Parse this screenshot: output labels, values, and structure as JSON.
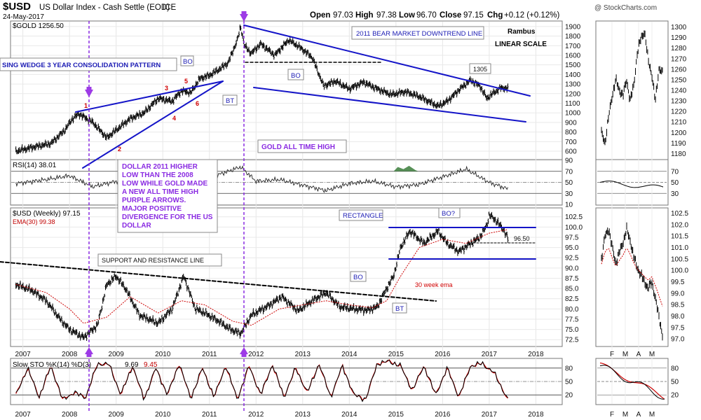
{
  "header": {
    "symbol": "$USD",
    "title": "US Dollar Index - Cash Settle (EOD)",
    "exchange": "ICE",
    "date": "24-May-2017",
    "open_label": "Open",
    "open": "97.03",
    "high_label": "High",
    "high": "97.38",
    "low_label": "Low",
    "low": "96.70",
    "close_label": "Close",
    "close": "97.15",
    "chg_label": "Chg",
    "chg": "+0.12 (+0.12%)",
    "watermark": "@ StockCharts.com"
  },
  "author": {
    "name": "Rambus",
    "scale": "LINEAR SCALE"
  },
  "panels": {
    "gold": {
      "legend": "$GOLD 1256.50",
      "last": 1256.5
    },
    "rsi": {
      "legend": "RSI(14) 38.01",
      "last": 38.01
    },
    "usd": {
      "legend": "$USD (Weekly) 97.15",
      "ema_legend": "EMA(30) 99.38",
      "last": 97.15
    },
    "sto": {
      "legend_a": "Slow STO %K(14) %D(3)",
      "legend_k": "9.69",
      "legend_d": "9.45"
    }
  },
  "annotations": {
    "wedge": "SING WEDGE 3 YEAR CONSOLIDATION PATTERN",
    "bear": "2011 BEAR MARKET DOWNTREND LINE",
    "gold_ath": "GOLD ALL TIME HIGH",
    "divergence": [
      "DOLLAR 2011 HIGHER",
      "LOW THAN THE 2008",
      "LOW WHILE GOLD MADE",
      "A NEW ALL TIME HIGH",
      "PURPLE ARROWS.",
      "MAJOR POSITIVE",
      "DIVERGENCE FOR THE US",
      "DOLLAR"
    ],
    "support": "SUPPORT AND RESISTANCE LINE",
    "rectangle": "RECTANGLE",
    "bo1": "BO",
    "bo2": "BO",
    "bo3": "BO",
    "bo4": "BO?",
    "bt1": "BT",
    "bt2": "BT",
    "p1305": "1305",
    "level_9650": "96.50",
    "ema_note": "30 week ema",
    "wave_1": "1",
    "wave_2": "2",
    "wave_3": "3",
    "wave_4": "4",
    "wave_5": "5",
    "wave_6": "6"
  },
  "colors": {
    "trend": "#1414c8",
    "purple": "#8a2be2",
    "ema": "#cc0000",
    "rsi_fill": "#3a7d3a",
    "price": "#000000"
  },
  "chart_data": [
    {
      "type": "line",
      "title": "$GOLD (weekly)",
      "ylim": [
        520,
        1950
      ],
      "yticks": [
        600,
        700,
        800,
        900,
        1000,
        1100,
        1200,
        1300,
        1400,
        1500,
        1600,
        1700,
        1800,
        1900
      ],
      "x": [
        2006.85,
        2007.2,
        2007.6,
        2007.9,
        2008.05,
        2008.2,
        2008.5,
        2008.8,
        2009.0,
        2009.3,
        2009.6,
        2009.9,
        2010.2,
        2010.4,
        2010.6,
        2010.8,
        2011.0,
        2011.2,
        2011.4,
        2011.6,
        2011.67,
        2011.75,
        2011.9,
        2012.1,
        2012.4,
        2012.7,
        2012.95,
        2013.2,
        2013.45,
        2013.7,
        2014.0,
        2014.3,
        2014.6,
        2014.9,
        2015.2,
        2015.5,
        2015.9,
        2016.1,
        2016.4,
        2016.6,
        2016.8,
        2016.95,
        2017.1,
        2017.25,
        2017.4
      ],
      "values": [
        600,
        640,
        680,
        820,
        930,
        990,
        900,
        740,
        820,
        940,
        1000,
        1150,
        1120,
        1230,
        1210,
        1360,
        1390,
        1450,
        1520,
        1760,
        1900,
        1700,
        1620,
        1720,
        1600,
        1760,
        1680,
        1580,
        1280,
        1330,
        1250,
        1320,
        1250,
        1190,
        1220,
        1170,
        1070,
        1120,
        1260,
        1340,
        1280,
        1150,
        1210,
        1260,
        1256.5
      ]
    },
    {
      "type": "line",
      "title": "RSI(14) of $GOLD",
      "ylim": [
        10,
        90
      ],
      "yticks": [
        10,
        30,
        50,
        70,
        90
      ],
      "x": [
        2006.85,
        2007.5,
        2008.0,
        2008.5,
        2009.0,
        2009.5,
        2010.0,
        2010.5,
        2011.0,
        2011.67,
        2012.0,
        2012.5,
        2013.0,
        2013.5,
        2014.0,
        2014.5,
        2015.0,
        2015.5,
        2016.0,
        2016.5,
        2017.0,
        2017.4
      ],
      "values": [
        48,
        55,
        62,
        42,
        52,
        58,
        60,
        56,
        58,
        78,
        52,
        55,
        45,
        35,
        48,
        52,
        42,
        46,
        60,
        74,
        50,
        38
      ]
    },
    {
      "type": "line",
      "title": "$USD (Weekly)",
      "ylim": [
        71,
        104.5
      ],
      "yticks": [
        72.5,
        75.0,
        77.5,
        80.0,
        82.5,
        85.0,
        87.5,
        90.0,
        92.5,
        95.0,
        97.5,
        100.0,
        102.5
      ],
      "x": [
        2006.85,
        2007.2,
        2007.5,
        2007.8,
        2008.0,
        2008.3,
        2008.6,
        2008.8,
        2009.0,
        2009.2,
        2009.5,
        2009.9,
        2010.2,
        2010.45,
        2010.7,
        2010.9,
        2011.2,
        2011.45,
        2011.67,
        2011.9,
        2012.3,
        2012.55,
        2012.9,
        2013.2,
        2013.5,
        2013.8,
        2014.1,
        2014.4,
        2014.6,
        2014.8,
        2014.95,
        2015.1,
        2015.3,
        2015.6,
        2015.9,
        2016.1,
        2016.35,
        2016.6,
        2016.8,
        2016.95,
        2017.0,
        2017.15,
        2017.3,
        2017.4
      ],
      "values": [
        86,
        84.5,
        82,
        77.5,
        75,
        73,
        76,
        86,
        88,
        85,
        78.5,
        76.5,
        80,
        88,
        80,
        79,
        77,
        75,
        74,
        78.5,
        81,
        83,
        79.5,
        82,
        84,
        80.5,
        80,
        79.7,
        80.5,
        85,
        88,
        95,
        99,
        96,
        99,
        96,
        94,
        96,
        97.5,
        100.5,
        103,
        101.5,
        99.5,
        97.15
      ]
    },
    {
      "type": "line",
      "title": "EMA(30) of $USD",
      "x": [
        2006.85,
        2007.5,
        2008.0,
        2008.3,
        2008.8,
        2009.3,
        2009.9,
        2010.4,
        2010.9,
        2011.5,
        2011.9,
        2012.5,
        2013.0,
        2013.5,
        2014.0,
        2014.5,
        2014.8,
        2015.1,
        2015.5,
        2016.0,
        2016.5,
        2017.0,
        2017.4
      ],
      "values": [
        86,
        84,
        80,
        76.5,
        78,
        83,
        79,
        82,
        81,
        77,
        76,
        80,
        81,
        82,
        81,
        80.3,
        82,
        88,
        95,
        97,
        96,
        98.5,
        99.38
      ]
    },
    {
      "type": "line",
      "title": "Slow STO %K(14) %D(3)",
      "ylim": [
        0,
        100
      ],
      "yticks": [
        20,
        50,
        80
      ],
      "x": [
        2006.85,
        2007.1,
        2007.35,
        2007.6,
        2007.85,
        2008.1,
        2008.35,
        2008.6,
        2008.85,
        2009.1,
        2009.35,
        2009.6,
        2009.85,
        2010.1,
        2010.35,
        2010.6,
        2010.85,
        2011.1,
        2011.35,
        2011.6,
        2011.85,
        2012.1,
        2012.35,
        2012.6,
        2012.85,
        2013.1,
        2013.35,
        2013.6,
        2013.85,
        2014.1,
        2014.35,
        2014.6,
        2014.85,
        2015.1,
        2015.35,
        2015.6,
        2015.85,
        2016.1,
        2016.35,
        2016.6,
        2016.85,
        2017.1,
        2017.4
      ],
      "values": [
        20,
        80,
        15,
        85,
        10,
        25,
        15,
        90,
        88,
        20,
        85,
        10,
        80,
        20,
        90,
        12,
        80,
        15,
        85,
        10,
        85,
        20,
        88,
        15,
        80,
        25,
        90,
        15,
        85,
        20,
        10,
        90,
        95,
        85,
        30,
        85,
        20,
        80,
        15,
        85,
        90,
        70,
        9.69
      ]
    },
    {
      "type": "line",
      "title": "Right mini panel: $GOLD daily",
      "ylim": [
        1175,
        1305
      ],
      "yticks": [
        1180,
        1190,
        1200,
        1210,
        1220,
        1230,
        1240,
        1250,
        1260,
        1270,
        1280,
        1290,
        1300
      ],
      "categories": [
        "F",
        "M",
        "A",
        "M"
      ],
      "x": [
        0,
        1,
        2,
        3,
        4,
        5,
        6,
        7,
        8,
        9,
        10,
        11,
        12,
        13,
        14,
        15,
        16,
        17
      ],
      "values": [
        1200,
        1190,
        1215,
        1235,
        1250,
        1240,
        1235,
        1250,
        1230,
        1245,
        1275,
        1290,
        1295,
        1270,
        1255,
        1230,
        1260,
        1256.5
      ]
    },
    {
      "type": "line",
      "title": "Right mini panel: $USD daily",
      "ylim": [
        96.7,
        102.7
      ],
      "yticks": [
        97.0,
        97.5,
        98.0,
        98.5,
        99.0,
        99.5,
        100.0,
        100.5,
        101.0,
        101.5,
        102.0,
        102.5
      ],
      "x": [
        0,
        1,
        2,
        3,
        4,
        5,
        6,
        7,
        8,
        9,
        10,
        11,
        12,
        13,
        14,
        15,
        16,
        17
      ],
      "values": [
        100.5,
        101.5,
        101.8,
        101.0,
        100.3,
        100.8,
        101.2,
        101.8,
        101.3,
        100.6,
        100.1,
        99.8,
        99.5,
        99.2,
        99.5,
        98.8,
        98.0,
        97.15
      ]
    }
  ],
  "axes": {
    "years": [
      "2007",
      "2008",
      "2009",
      "2010",
      "2011",
      "2012",
      "2013",
      "2014",
      "2015",
      "2016",
      "2017",
      "2018"
    ],
    "mini_months": [
      "F",
      "M",
      "A",
      "M"
    ]
  }
}
